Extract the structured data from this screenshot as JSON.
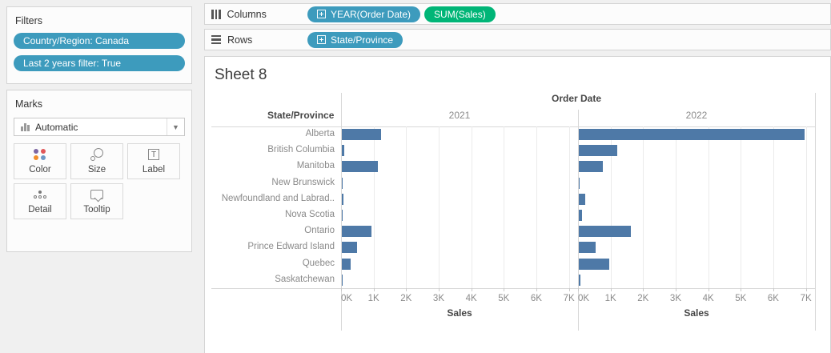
{
  "colors": {
    "dimension_pill": "#3d9bbd",
    "measure_pill": "#00b577",
    "bar": "#4e79a7",
    "color_icon_dots": [
      "#7d66a3",
      "#e15759",
      "#f28e2b",
      "#6f98c6"
    ]
  },
  "filters_panel": {
    "title": "Filters",
    "pills": [
      "Country/Region: Canada",
      "Last 2 years filter: True"
    ]
  },
  "marks_panel": {
    "title": "Marks",
    "mark_type": "Automatic",
    "buttons": {
      "color": "Color",
      "size": "Size",
      "label": "Label",
      "detail": "Detail",
      "tooltip": "Tooltip"
    }
  },
  "shelves": {
    "columns_label": "Columns",
    "rows_label": "Rows",
    "columns_pills": [
      {
        "label": "YEAR(Order Date)",
        "type": "dimension",
        "expandable": true
      },
      {
        "label": "SUM(Sales)",
        "type": "measure",
        "expandable": false
      }
    ],
    "rows_pills": [
      {
        "label": "State/Province",
        "type": "dimension",
        "expandable": true
      }
    ]
  },
  "sheet": {
    "title": "Sheet 8"
  },
  "chart_data": {
    "type": "bar",
    "orientation": "horizontal",
    "col_field_label": "Order Date",
    "row_field_label": "State/Province",
    "xlabel": "Sales",
    "x_ticks": [
      "0K",
      "1K",
      "2K",
      "3K",
      "4K",
      "5K",
      "6K",
      "7K"
    ],
    "xlim": [
      0,
      7280
    ],
    "grid": true,
    "categories": [
      "Alberta",
      "British Columbia",
      "Manitoba",
      "New Brunswick",
      "Newfoundland and Labrad..",
      "Nova Scotia",
      "Ontario",
      "Prince Edward Island",
      "Quebec",
      "Saskatchewan"
    ],
    "series": [
      {
        "name": "2021",
        "values": [
          1210,
          70,
          1100,
          20,
          60,
          25,
          900,
          470,
          280,
          35
        ]
      },
      {
        "name": "2022",
        "values": [
          6930,
          1190,
          740,
          30,
          190,
          110,
          1600,
          520,
          940,
          50
        ]
      }
    ]
  }
}
